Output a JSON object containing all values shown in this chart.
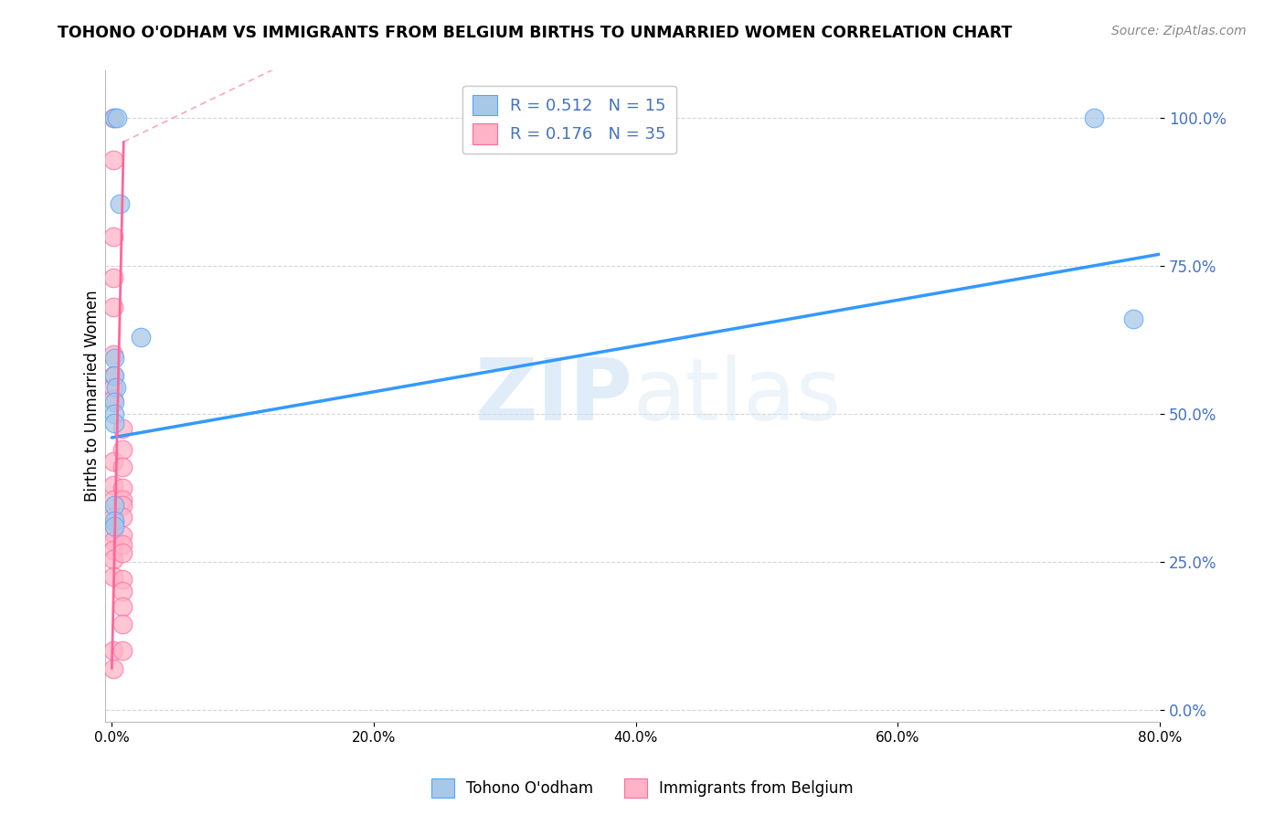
{
  "title": "TOHONO O'ODHAM VS IMMIGRANTS FROM BELGIUM BIRTHS TO UNMARRIED WOMEN CORRELATION CHART",
  "source": "Source: ZipAtlas.com",
  "ylabel": "Births to Unmarried Women",
  "xlim": [
    -0.005,
    0.8
  ],
  "ylim": [
    -0.02,
    1.08
  ],
  "xtick_vals": [
    0.0,
    0.2,
    0.4,
    0.6,
    0.8
  ],
  "xtick_labels": [
    "0.0%",
    "20.0%",
    "40.0%",
    "60.0%",
    "80.0%"
  ],
  "ytick_vals": [
    0.0,
    0.25,
    0.5,
    0.75,
    1.0
  ],
  "ytick_labels": [
    "0.0%",
    "25.0%",
    "50.0%",
    "75.0%",
    "100.0%"
  ],
  "legend_blue_R": "0.512",
  "legend_blue_N": "15",
  "legend_pink_R": "0.176",
  "legend_pink_N": "35",
  "legend_label_blue": "Tohono O'odham",
  "legend_label_pink": "Immigrants from Belgium",
  "watermark_part1": "ZIP",
  "watermark_part2": "atlas",
  "blue_color": "#a8c8e8",
  "blue_edge_color": "#4da6ff",
  "pink_color": "#ffb3c6",
  "pink_edge_color": "#ff69a0",
  "blue_line_color": "#3399ff",
  "pink_line_color": "#ff6699",
  "accent_color": "#4472C4",
  "blue_scatter_x": [
    0.002,
    0.004,
    0.006,
    0.022,
    0.002,
    0.002,
    0.003,
    0.002,
    0.002,
    0.002,
    0.002,
    0.002,
    0.002,
    0.75,
    0.78
  ],
  "blue_scatter_y": [
    1.0,
    1.0,
    0.855,
    0.63,
    0.595,
    0.565,
    0.545,
    0.52,
    0.5,
    0.485,
    0.345,
    0.32,
    0.31,
    1.0,
    0.66
  ],
  "pink_scatter_x": [
    0.001,
    0.001,
    0.001,
    0.001,
    0.001,
    0.001,
    0.001,
    0.001,
    0.001,
    0.001,
    0.001,
    0.001,
    0.001,
    0.001,
    0.001,
    0.001,
    0.001,
    0.001,
    0.001,
    0.001,
    0.008,
    0.008,
    0.008,
    0.008,
    0.008,
    0.008,
    0.008,
    0.008,
    0.008,
    0.008,
    0.008,
    0.008,
    0.008,
    0.008,
    0.008
  ],
  "pink_scatter_y": [
    1.0,
    0.93,
    0.8,
    0.73,
    0.68,
    0.6,
    0.565,
    0.545,
    0.525,
    0.42,
    0.38,
    0.355,
    0.325,
    0.3,
    0.285,
    0.27,
    0.255,
    0.225,
    0.1,
    0.07,
    0.475,
    0.44,
    0.41,
    0.375,
    0.355,
    0.345,
    0.325,
    0.295,
    0.28,
    0.265,
    0.22,
    0.2,
    0.175,
    0.145,
    0.1
  ],
  "blue_trend_x0": 0.0,
  "blue_trend_y0": 0.46,
  "blue_trend_x1": 0.8,
  "blue_trend_y1": 0.77,
  "pink_trend_solid_x0": 0.0,
  "pink_trend_solid_y0": 0.07,
  "pink_trend_solid_x1": 0.009,
  "pink_trend_solid_y1": 0.96,
  "pink_trend_dash_x0": 0.009,
  "pink_trend_dash_y0": 0.96,
  "pink_trend_dash_x1": 0.14,
  "pink_trend_dash_y1": 1.1
}
